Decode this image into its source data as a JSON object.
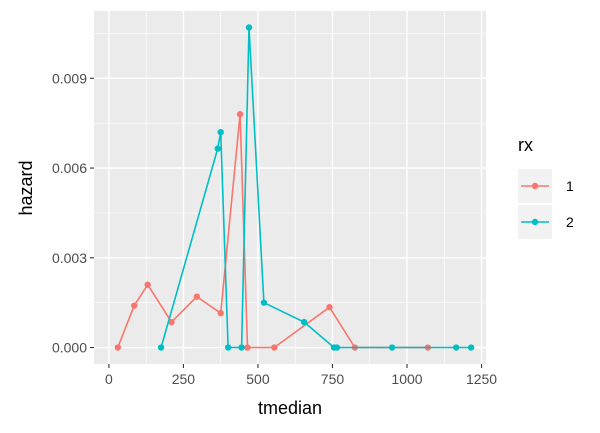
{
  "chart_data": {
    "type": "line",
    "xlabel": "tmedian",
    "ylabel": "hazard",
    "xlim": [
      -50,
      1265
    ],
    "ylim": [
      -0.00055,
      0.01125
    ],
    "x_ticks": [
      0,
      250,
      500,
      750,
      1000,
      1250
    ],
    "y_ticks": [
      0.0,
      0.003,
      0.006,
      0.009
    ],
    "x_tick_labels": [
      "0",
      "250",
      "500",
      "750",
      "1000",
      "1250"
    ],
    "y_tick_labels": [
      "0.000",
      "0.003",
      "0.006",
      "0.009"
    ],
    "grid": true,
    "legend": {
      "title": "rx",
      "position": "right"
    },
    "series": [
      {
        "name": "1",
        "color": "#F8766D",
        "points": [
          [
            30,
            0.0
          ],
          [
            85,
            0.0014
          ],
          [
            130,
            0.0021
          ],
          [
            210,
            0.00085
          ],
          [
            295,
            0.0017
          ],
          [
            375,
            0.00115
          ],
          [
            440,
            0.0078
          ],
          [
            465,
            0.0
          ],
          [
            555,
            0.0
          ],
          [
            740,
            0.00135
          ],
          [
            825,
            0.0
          ],
          [
            1070,
            0.0
          ]
        ]
      },
      {
        "name": "2",
        "color": "#00BFC4",
        "points": [
          [
            175,
            0.0
          ],
          [
            365,
            0.00665
          ],
          [
            375,
            0.0072
          ],
          [
            400,
            0.0
          ],
          [
            445,
            0.0
          ],
          [
            470,
            0.0107
          ],
          [
            520,
            0.0015
          ],
          [
            655,
            0.00085
          ],
          [
            755,
            0.0
          ],
          [
            765,
            0.0
          ],
          [
            950,
            0.0
          ],
          [
            1165,
            0.0
          ],
          [
            1215,
            0.0
          ]
        ]
      }
    ]
  }
}
